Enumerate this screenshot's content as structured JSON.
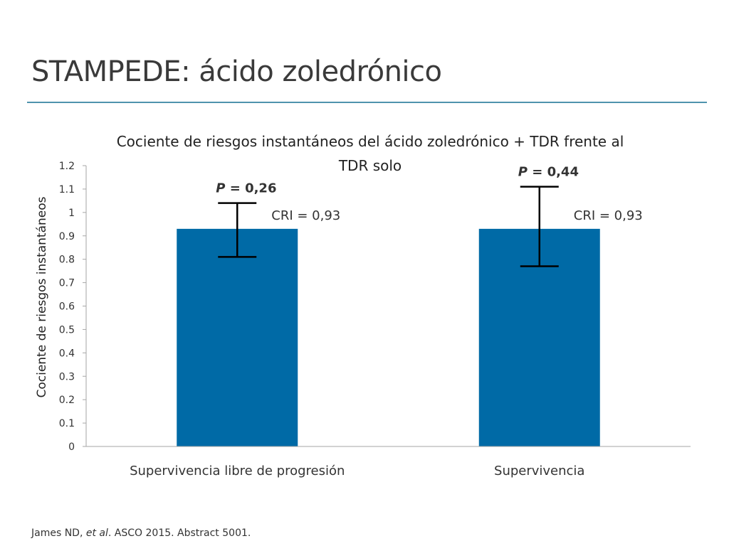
{
  "slide": {
    "title": "STAMPEDE: ácido zoledrónico"
  },
  "chart_data": {
    "type": "bar",
    "title": "Cociente de riesgos instantáneos del ácido zoledrónico + TDR frente al TDR solo",
    "title_lines": [
      "Cociente de riesgos instantáneos del ácido zoledrónico + TDR frente al",
      "TDR solo"
    ],
    "xlabel": "",
    "ylabel": "Cociente de riesgos instantáneos",
    "ylim": [
      0,
      1.2
    ],
    "yticks": [
      "0",
      "0.1",
      "0.2",
      "0.3",
      "0.4",
      "0.5",
      "0.6",
      "0.7",
      "0.8",
      "0.9",
      "1",
      "1.1",
      "1.2"
    ],
    "categories": [
      "Supervivencia libre de progresión",
      "Supervivencia"
    ],
    "values": [
      0.93,
      0.93
    ],
    "error_low": [
      0.81,
      0.77
    ],
    "error_high": [
      1.04,
      1.11
    ],
    "p_prefix": "P",
    "p_values": [
      "= 0,26",
      "= 0,44"
    ],
    "cri_labels": [
      "CRI = 0,93",
      "CRI = 0,93"
    ],
    "bar_color": "#006aa6",
    "grid": false,
    "legend": "none"
  },
  "footer": {
    "author": "James ND,",
    "etal": "et al",
    "rest": ". ASCO 2015. Abstract 5001."
  }
}
